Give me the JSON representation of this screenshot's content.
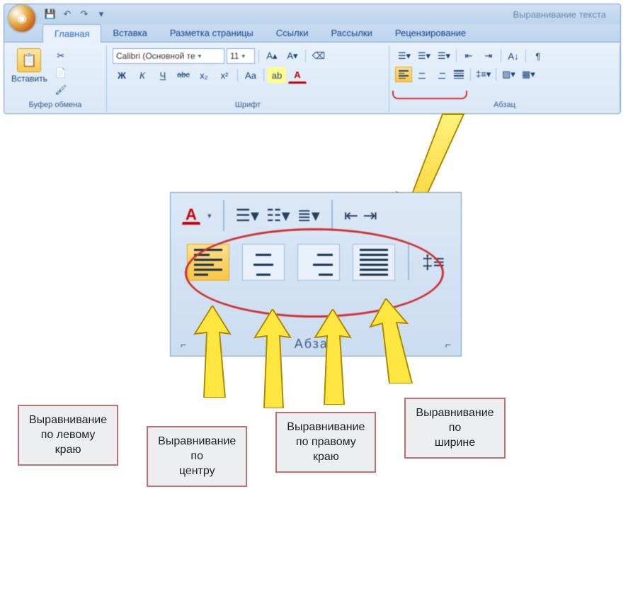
{
  "title": "Выравнивание текста",
  "qat": {
    "save": "💾",
    "undo": "↶",
    "redo": "↷",
    "more": "▾"
  },
  "tabs": [
    "Главная",
    "Вставка",
    "Разметка страницы",
    "Ссылки",
    "Рассылки",
    "Рецензирование"
  ],
  "active_tab": 0,
  "clipboard": {
    "paste_label": "Вставить",
    "group": "Буфер обмена"
  },
  "font": {
    "name": "Calibri (Основной те",
    "size": "11",
    "group": "Шрифт",
    "bold": "Ж",
    "italic": "К",
    "underline": "Ч",
    "strike": "abc",
    "sub": "x₂",
    "sup": "x²",
    "case": "Aa",
    "highlight": "ab",
    "color": "A",
    "grow": "A▴",
    "shrink": "A▾",
    "clear": "⌫"
  },
  "paragraph": {
    "group": "Абзац",
    "bullets": "≡",
    "numbers": "≡",
    "multi": "≡",
    "dec_indent": "≤",
    "inc_indent": "≥",
    "sort": "A↓",
    "show": "¶",
    "line_spacing": "≡",
    "shading": "▦",
    "borders": "▦"
  },
  "zoom_footer": "Абзац",
  "labels": {
    "left": "Выравнивание\nпо левому\nкраю",
    "center": "Выравнивание\nпо\nцентру",
    "right": "Выравнивание\nпо правому\nкраю",
    "just": "Выравнивание\nпо\nширине"
  },
  "colors": {
    "red": "#d03030",
    "yellow_arrow_fill": "#ffe640",
    "yellow_arrow_stroke": "#b08a00"
  }
}
